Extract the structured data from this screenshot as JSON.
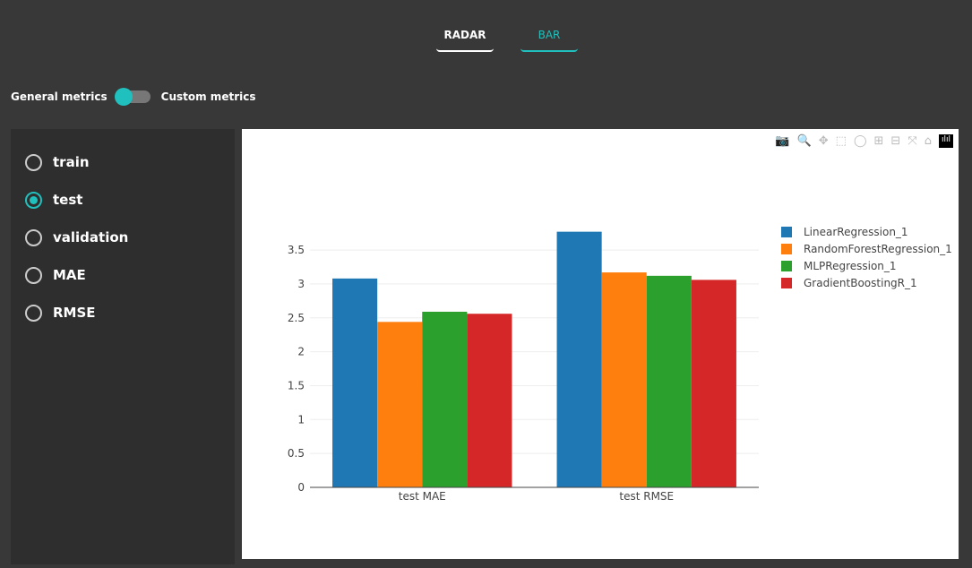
{
  "tabs": [
    {
      "label": "RADAR",
      "active": false
    },
    {
      "label": "BAR",
      "active": true
    }
  ],
  "toggle": {
    "left_label": "General metrics",
    "right_label": "Custom metrics",
    "state": "General metrics"
  },
  "options": [
    {
      "label": "train",
      "selected": false
    },
    {
      "label": "test",
      "selected": true
    },
    {
      "label": "validation",
      "selected": false
    },
    {
      "label": "MAE",
      "selected": false
    },
    {
      "label": "RMSE",
      "selected": false
    }
  ],
  "accent": "#1fc0bd",
  "modebar": [
    "camera-icon",
    "zoom-icon",
    "pan-icon",
    "box-select-icon",
    "lasso-icon",
    "zoom-in-icon",
    "zoom-out-icon",
    "autoscale-icon",
    "reset-axes-icon",
    "plotly-logo-icon"
  ],
  "chart_data": {
    "type": "bar",
    "categories": [
      "test MAE",
      "test RMSE"
    ],
    "series": [
      {
        "name": "LinearRegression_1",
        "color": "#1f77b4",
        "values": [
          3.08,
          3.77
        ]
      },
      {
        "name": "RandomForestRegression_1",
        "color": "#ff7f0e",
        "values": [
          2.44,
          3.17
        ]
      },
      {
        "name": "MLPRegression_1",
        "color": "#2ca02c",
        "values": [
          2.59,
          3.12
        ]
      },
      {
        "name": "GradientBoostingR_1",
        "color": "#d62728",
        "values": [
          2.56,
          3.06
        ]
      }
    ],
    "yticks": [
      "0",
      "0.5",
      "1",
      "1.5",
      "2",
      "2.5",
      "3",
      "3.5"
    ],
    "ylim": [
      0,
      3.97
    ],
    "grid": true,
    "legend": "top-right"
  }
}
